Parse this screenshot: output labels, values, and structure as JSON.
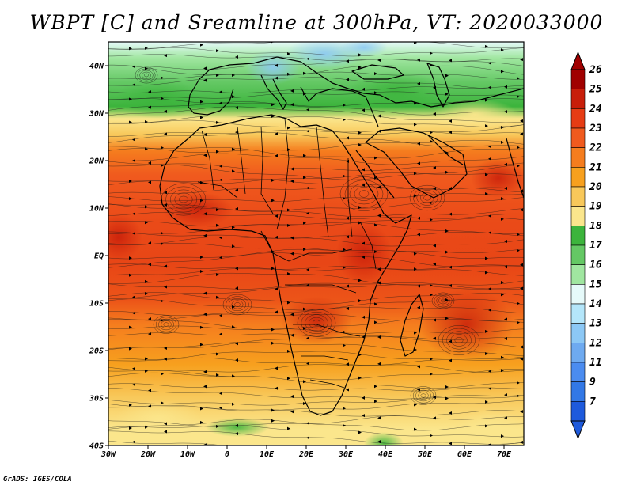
{
  "title": "WBPT [C] and Sreamline at 300hPa, VT: 2020033000",
  "credit": "GrADS: IGES/COLA",
  "map": {
    "variable": "WBPT [C]",
    "overlay": "Streamline",
    "level": "300hPa",
    "valid_time": "2020033000",
    "lon_range": [
      -30,
      75
    ],
    "lat_range": [
      -40,
      45
    ],
    "lon_ticks": [
      {
        "value": -30,
        "label": "30W"
      },
      {
        "value": -20,
        "label": "20W"
      },
      {
        "value": -10,
        "label": "10W"
      },
      {
        "value": 0,
        "label": "0"
      },
      {
        "value": 10,
        "label": "10E"
      },
      {
        "value": 20,
        "label": "20E"
      },
      {
        "value": 30,
        "label": "30E"
      },
      {
        "value": 40,
        "label": "40E"
      },
      {
        "value": 50,
        "label": "50E"
      },
      {
        "value": 60,
        "label": "60E"
      },
      {
        "value": 70,
        "label": "70E"
      }
    ],
    "lat_ticks": [
      {
        "value": 40,
        "label": "40N"
      },
      {
        "value": 30,
        "label": "30N"
      },
      {
        "value": 20,
        "label": "20N"
      },
      {
        "value": 10,
        "label": "10N"
      },
      {
        "value": 0,
        "label": "EQ"
      },
      {
        "value": -10,
        "label": "10S"
      },
      {
        "value": -20,
        "label": "20S"
      },
      {
        "value": -30,
        "label": "30S"
      },
      {
        "value": -40,
        "label": "40S"
      }
    ]
  },
  "colorbar": {
    "levels": [
      {
        "label": "26",
        "color": "#a00000"
      },
      {
        "label": "25",
        "color": "#c81e0a"
      },
      {
        "label": "24",
        "color": "#e63c14"
      },
      {
        "label": "23",
        "color": "#f05a1e"
      },
      {
        "label": "22",
        "color": "#f57d1e"
      },
      {
        "label": "21",
        "color": "#f7a01e"
      },
      {
        "label": "20",
        "color": "#f8c85a"
      },
      {
        "label": "19",
        "color": "#fbe68c"
      },
      {
        "label": "18",
        "color": "#3cb43c"
      },
      {
        "label": "17",
        "color": "#64c864"
      },
      {
        "label": "16",
        "color": "#a0e6a0"
      },
      {
        "label": "15",
        "color": "#e6fafa"
      },
      {
        "label": "14",
        "color": "#b4e6fa"
      },
      {
        "label": "13",
        "color": "#8cc8f5"
      },
      {
        "label": "12",
        "color": "#6eaaf0"
      },
      {
        "label": "11",
        "color": "#4b8cf0"
      },
      {
        "label": "9",
        "color": "#3278e6"
      },
      {
        "label": "7",
        "color": "#1e5adc"
      }
    ]
  }
}
